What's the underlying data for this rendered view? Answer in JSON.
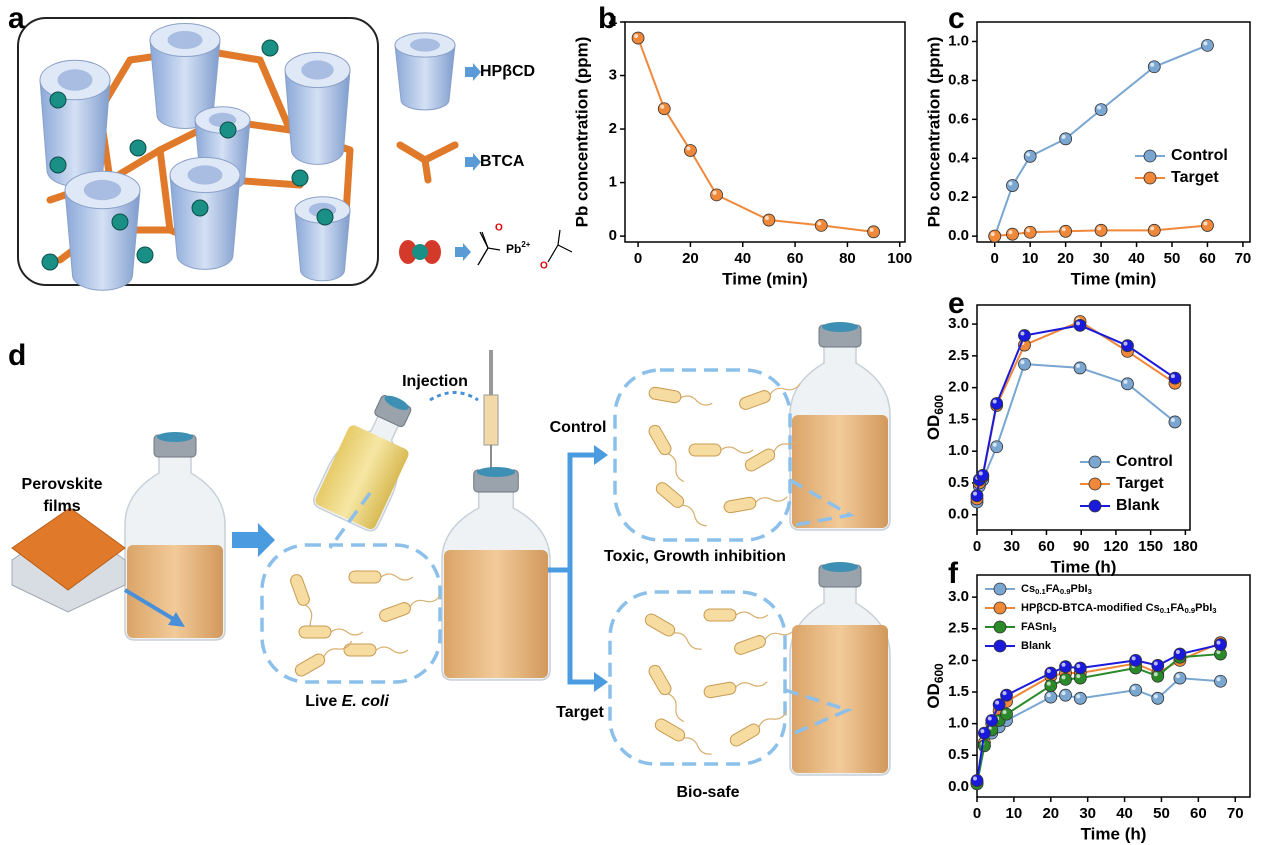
{
  "panel_labels": [
    "a",
    "b",
    "c",
    "d",
    "e",
    "f"
  ],
  "diagram_a": {
    "legend": [
      "HPβCD",
      "BTCA"
    ],
    "chem": {
      "pb": "Pb",
      "charge": "2+",
      "o": [
        "O",
        "O"
      ]
    }
  },
  "diagram_d": {
    "films": [
      "Perovskite",
      "films"
    ],
    "injection": "Injection",
    "control": "Control",
    "target": "Target",
    "live": [
      "Live ",
      "E. coli"
    ],
    "toxic": "Toxic, Growth inhibition",
    "biosafe": "Bio-safe"
  },
  "chart_data": [
    {
      "type": "line",
      "x_label": "Time (min)",
      "y_label": "Pb concentration (ppm)",
      "x": [
        0,
        10,
        20,
        30,
        50,
        70,
        90
      ],
      "xlim": [
        -5,
        102
      ],
      "xticks": [
        0,
        20,
        40,
        60,
        80,
        100
      ],
      "ylim": [
        -0.11,
        4
      ],
      "yticks": [
        0,
        1,
        2,
        3,
        4
      ],
      "series": [
        {
          "color": "#f0883a",
          "values": [
            3.7,
            2.38,
            1.6,
            0.77,
            0.3,
            0.2,
            0.08
          ]
        }
      ]
    },
    {
      "type": "line",
      "x_label": "Time (min)",
      "y_label": "Pb concentration (ppm)",
      "x": [
        0,
        5,
        10,
        20,
        30,
        45,
        60
      ],
      "xlim": [
        -5,
        72
      ],
      "xticks": [
        0,
        10,
        20,
        30,
        40,
        50,
        60,
        70
      ],
      "ylim": [
        -0.03,
        1.1
      ],
      "yticks": [
        {
          "value": 0,
          "label": "0.0"
        },
        0.2,
        0.4,
        0.6,
        0.8,
        {
          "value": 1,
          "label": "1.0"
        }
      ],
      "legend": "center right",
      "series": [
        {
          "name": [
            "Control"
          ],
          "color": "#7aa6d2",
          "values": [
            0,
            0.26,
            0.41,
            0.5,
            0.65,
            0.87,
            0.98
          ]
        },
        {
          "name": [
            "Target"
          ],
          "color": "#f0883a",
          "values": [
            0,
            0.01,
            0.02,
            0.025,
            0.03,
            0.03,
            0.055
          ]
        }
      ]
    },
    {
      "type": "line",
      "x_label": "Time (h)",
      "y_label": [
        "OD",
        "600"
      ],
      "x": [
        0,
        2,
        5,
        17,
        41,
        89,
        130,
        171
      ],
      "xlim": [
        0,
        184
      ],
      "xticks": [
        0,
        30,
        60,
        90,
        120,
        150,
        180
      ],
      "ylim": [
        -0.24,
        3.3
      ],
      "yticks": [
        {
          "value": 0,
          "label": "0.0"
        },
        0.5,
        {
          "value": 1,
          "label": "1.0"
        },
        1.5,
        {
          "value": 2,
          "label": "2.0"
        },
        2.5,
        {
          "value": 3,
          "label": "3.0"
        }
      ],
      "legend": "lower right",
      "series": [
        {
          "name": [
            "Control"
          ],
          "color": "#7aa6d2",
          "values": [
            0.2,
            0.45,
            0.55,
            1.07,
            2.37,
            2.31,
            2.06,
            1.46
          ]
        },
        {
          "name": [
            "Target"
          ],
          "color": "#f0883a",
          "values": [
            0.25,
            0.5,
            0.6,
            1.72,
            2.67,
            3.04,
            2.57,
            2.07
          ]
        },
        {
          "name": [
            "Blank"
          ],
          "color": "#1a1adc",
          "values": [
            0.3,
            0.55,
            0.62,
            1.75,
            2.82,
            2.98,
            2.66,
            2.15
          ]
        }
      ]
    },
    {
      "type": "line",
      "x_label": "Time (h)",
      "y_label": [
        "OD",
        "600"
      ],
      "x": [
        0,
        2,
        4,
        6,
        8,
        20,
        24,
        28,
        43,
        49,
        55,
        66
      ],
      "xlim": [
        0,
        74
      ],
      "xticks": [
        0,
        10,
        20,
        30,
        40,
        50,
        60,
        70
      ],
      "ylim": [
        -0.16,
        3.35
      ],
      "yticks": [
        {
          "value": 0,
          "label": "0.0"
        },
        0.5,
        {
          "value": 1,
          "label": "1.0"
        },
        1.5,
        {
          "value": 2,
          "label": "2.0"
        },
        2.5,
        {
          "value": 3,
          "label": "3.0"
        }
      ],
      "legend": "upper left",
      "series": [
        {
          "name": [
            "Cs",
            "0.1",
            "FA",
            "0.9",
            "PbI",
            "3"
          ],
          "color": "#7aa6d2",
          "values": [
            0.05,
            0.65,
            0.85,
            0.95,
            1.05,
            1.42,
            1.45,
            1.4,
            1.53,
            1.4,
            1.72,
            1.67
          ]
        },
        {
          "name": [
            "HPβCD-BTCA-modified Cs",
            "0.1",
            "FA",
            "0.9",
            "PbI",
            "3"
          ],
          "color": "#f0883a",
          "values": [
            0.08,
            0.7,
            1.0,
            1.2,
            1.35,
            1.75,
            1.8,
            1.8,
            1.95,
            1.8,
            2.0,
            2.28
          ]
        },
        {
          "name": [
            "FASnI",
            "3"
          ],
          "color": "#2a8a2a",
          "values": [
            0.05,
            0.65,
            0.9,
            1.05,
            1.15,
            1.6,
            1.7,
            1.72,
            1.88,
            1.75,
            2.05,
            2.1
          ]
        },
        {
          "name": [
            "Blank"
          ],
          "color": "#1a1adc",
          "values": [
            0.1,
            0.85,
            1.05,
            1.3,
            1.45,
            1.8,
            1.9,
            1.88,
            2.0,
            1.92,
            2.1,
            2.25
          ]
        }
      ]
    }
  ]
}
